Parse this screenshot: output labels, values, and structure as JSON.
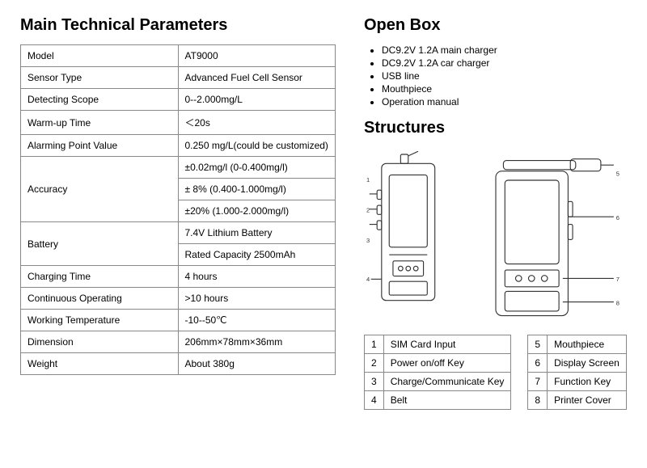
{
  "tech_params": {
    "title": "Main Technical Parameters",
    "rows": [
      {
        "label": "Model",
        "values": [
          "AT9000"
        ]
      },
      {
        "label": "Sensor Type",
        "values": [
          "Advanced Fuel Cell Sensor"
        ]
      },
      {
        "label": "Detecting Scope",
        "values": [
          "0--2.000mg/L"
        ]
      },
      {
        "label": "Warm-up Time",
        "values": [
          "＜20s"
        ]
      },
      {
        "label": "Alarming Point Value",
        "values": [
          "0.250 mg/L(could be customized)"
        ]
      },
      {
        "label": "Accuracy",
        "values": [
          "±0.02mg/l (0-0.400mg/l)",
          "± 8% (0.400-1.000mg/l)",
          "±20% (1.000-2.000mg/l)"
        ]
      },
      {
        "label": "Battery",
        "values": [
          "7.4V Lithium Battery",
          "Rated Capacity 2500mAh"
        ]
      },
      {
        "label": "Charging Time",
        "values": [
          "4 hours"
        ]
      },
      {
        "label": "Continuous Operating",
        "values": [
          ">10 hours"
        ]
      },
      {
        "label": "Working Temperature",
        "values": [
          "-10--50℃"
        ]
      },
      {
        "label": "Dimension",
        "values": [
          "206mm×78mm×36mm"
        ]
      },
      {
        "label": "Weight",
        "values": [
          "About 380g"
        ]
      }
    ]
  },
  "open_box": {
    "title": "Open Box",
    "items": [
      "DC9.2V 1.2A main charger",
      "DC9.2V 1.2A car charger",
      "USB line",
      "Mouthpiece",
      "Operation manual"
    ]
  },
  "structures": {
    "title": "Structures",
    "left_table": [
      {
        "n": "1",
        "label": "SIM Card Input"
      },
      {
        "n": "2",
        "label": "Power on/off Key"
      },
      {
        "n": "3",
        "label": "Charge/Communicate Key"
      },
      {
        "n": "4",
        "label": "Belt"
      }
    ],
    "right_table": [
      {
        "n": "5",
        "label": "Mouthpiece"
      },
      {
        "n": "6",
        "label": "Display Screen"
      },
      {
        "n": "7",
        "label": "Function Key"
      },
      {
        "n": "8",
        "label": "Printer Cover"
      }
    ]
  },
  "style": {
    "border_color": "#888888",
    "text_color": "#000000",
    "bg_color": "#ffffff",
    "heading_fontsize": 20,
    "body_fontsize": 12
  }
}
